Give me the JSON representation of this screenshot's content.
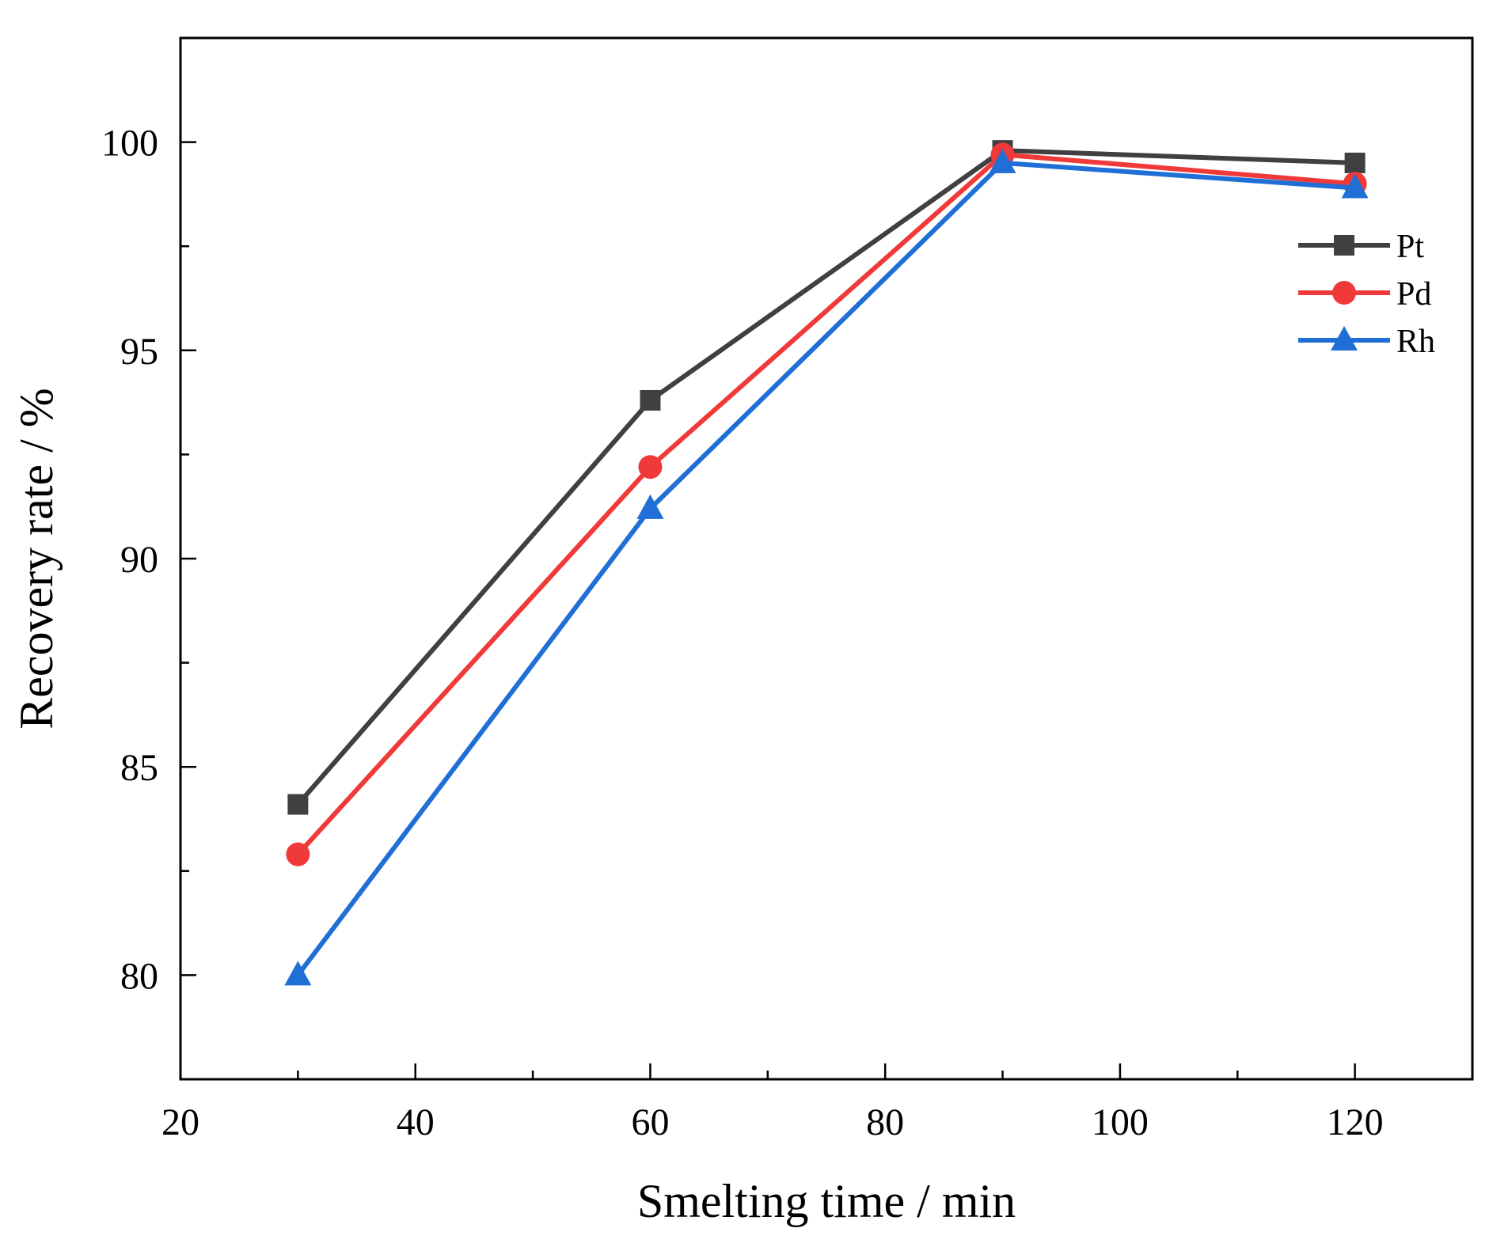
{
  "chart_data": {
    "type": "line",
    "title": "",
    "xlabel": "Smelting time / min",
    "ylabel": "Recovery rate / %",
    "xlim": [
      20,
      130
    ],
    "ylim": [
      77.5,
      102.5
    ],
    "x_ticks": [
      20,
      40,
      60,
      80,
      100,
      120
    ],
    "x_minor_ticks": [
      30,
      50,
      70,
      90,
      110
    ],
    "y_ticks": [
      80,
      85,
      90,
      95,
      100
    ],
    "y_minor_ticks": [
      82.5,
      87.5,
      92.5,
      97.5
    ],
    "x": [
      30,
      60,
      90,
      120
    ],
    "legend_position": "top-right",
    "series": [
      {
        "name": "Pt",
        "color": "#404040",
        "marker": "square",
        "values": [
          84.1,
          93.8,
          99.8,
          99.5
        ]
      },
      {
        "name": "Pd",
        "color": "#f03a3a",
        "marker": "circle",
        "values": [
          82.9,
          92.2,
          99.7,
          99.0
        ]
      },
      {
        "name": "Rh",
        "color": "#1f6fd6",
        "marker": "triangle",
        "values": [
          80.0,
          91.2,
          99.5,
          98.9
        ]
      }
    ]
  }
}
